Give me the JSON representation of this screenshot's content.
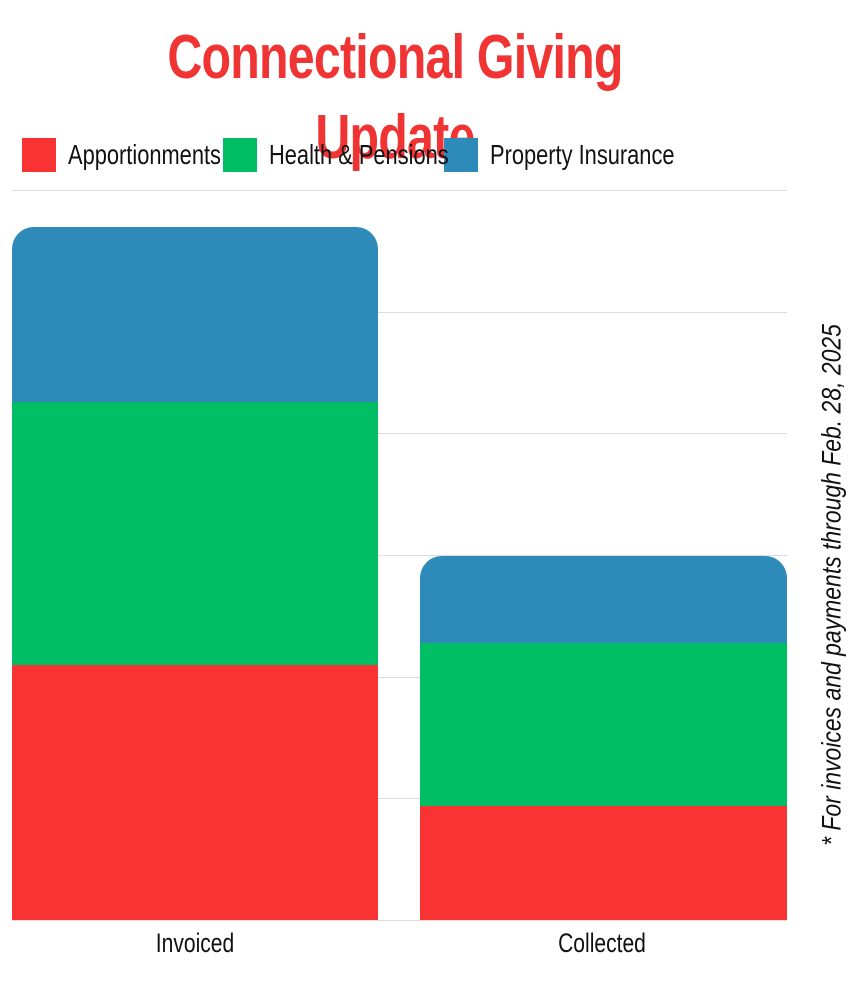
{
  "title": "Connectional Giving Update",
  "legend": [
    {
      "label": "Apportionments",
      "color": "#f93333"
    },
    {
      "label": "Health & Pensions",
      "color": "#00be63"
    },
    {
      "label": "Property Insurance",
      "color": "#2e8bb9"
    }
  ],
  "x_labels": [
    "Invoiced",
    "Collected"
  ],
  "note": "* For invoices and payments through Feb. 28, 2025",
  "chart_data": {
    "type": "bar",
    "stacked": true,
    "title": "Connectional Giving Update",
    "categories": [
      "Invoiced",
      "Collected"
    ],
    "series": [
      {
        "name": "Apportionments",
        "color": "#f93333",
        "values": [
          2.1,
          0.94
        ]
      },
      {
        "name": "Health & Pensions",
        "color": "#00be63",
        "values": [
          2.16,
          1.34
        ]
      },
      {
        "name": "Property Insurance",
        "color": "#2e8bb9",
        "values": [
          1.44,
          0.71
        ]
      }
    ],
    "totals": [
      5.7,
      2.98
    ],
    "units": "relative (gridline units; no axis tick labels shown)",
    "xlabel": "",
    "ylabel": "",
    "ylim": [
      0,
      6
    ],
    "y_gridlines": [
      1,
      2,
      3,
      4,
      5,
      6
    ],
    "grid": true,
    "legend_position": "top",
    "annotation": "* For invoices and payments through Feb. 28, 2025"
  }
}
